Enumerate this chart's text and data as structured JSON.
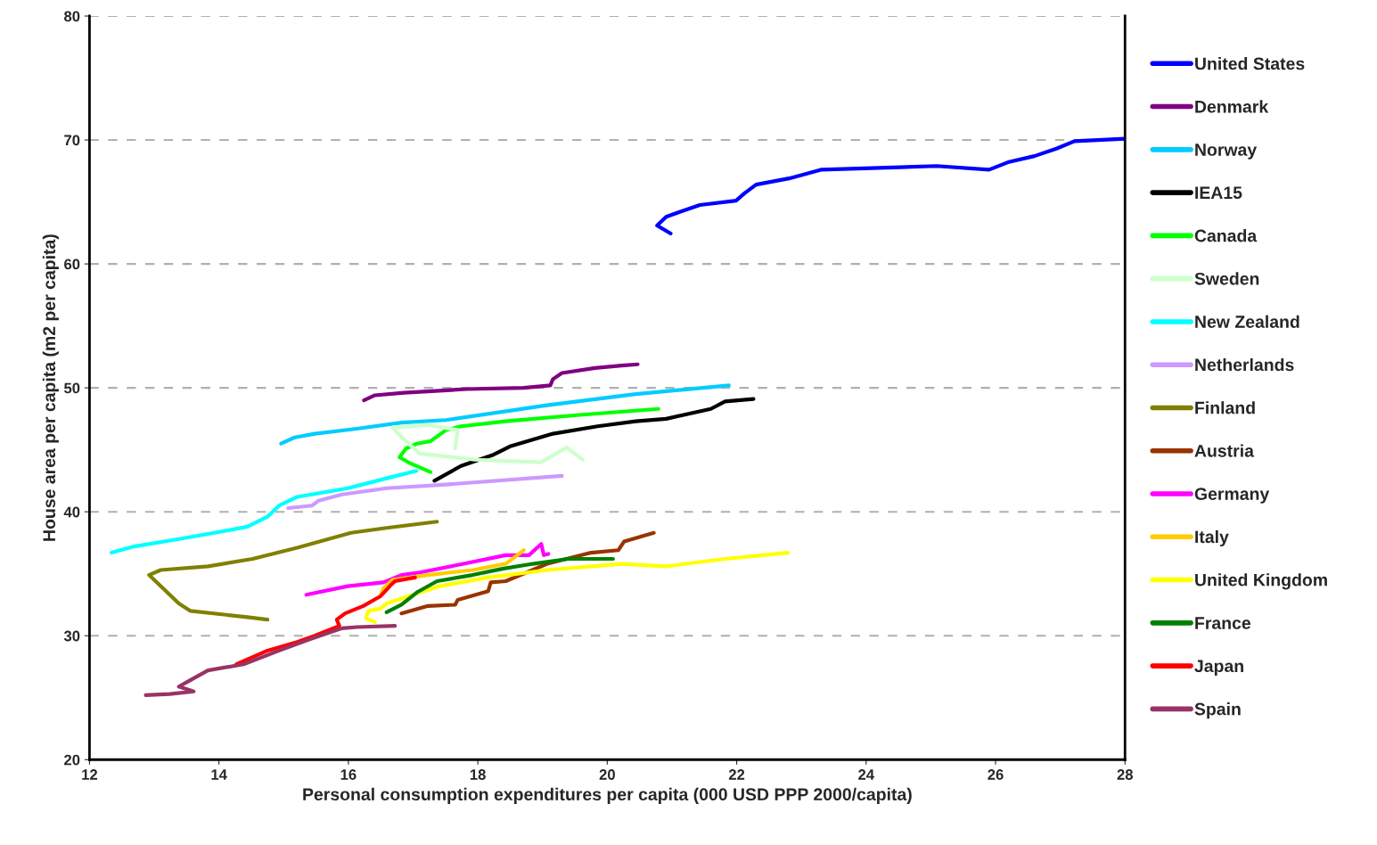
{
  "chart_data": {
    "type": "line",
    "xlabel": "Personal consumption expenditures per capita (000 USD PPP 2000/capita)",
    "ylabel": "House area per capita (m2 per capita)",
    "xlim": [
      12,
      28
    ],
    "xticks": [
      12,
      14,
      16,
      18,
      20,
      22,
      24,
      26,
      28
    ],
    "ylim": [
      20,
      80
    ],
    "yticks": [
      20,
      30,
      40,
      50,
      60,
      70,
      80
    ],
    "grid": "y",
    "legend": "right",
    "marker": "none",
    "line_style": "solid",
    "series": [
      {
        "name": "United States",
        "color": "#0000ff",
        "x": [
          20.98,
          20.77,
          20.91,
          21.12,
          21.43,
          21.99,
          22.12,
          22.3,
          22.81,
          23.3,
          25.09,
          25.9,
          26.19,
          26.6,
          26.94,
          27.22,
          28.0
        ],
        "values": [
          62.45,
          63.1,
          63.8,
          64.2,
          64.75,
          65.1,
          65.7,
          66.4,
          66.9,
          67.6,
          67.9,
          67.6,
          68.2,
          68.7,
          69.3,
          69.9,
          70.1
        ]
      },
      {
        "name": "Denmark",
        "color": "#800080",
        "x": [
          16.24,
          16.41,
          16.86,
          17.83,
          18.71,
          19.12,
          19.16,
          19.3,
          19.81,
          20.22,
          20.47
        ],
        "values": [
          49.0,
          49.4,
          49.6,
          49.9,
          50.0,
          50.2,
          50.7,
          51.2,
          51.6,
          51.8,
          51.9
        ]
      },
      {
        "name": "Norway",
        "color": "#00ccff",
        "x": [
          14.96,
          15.17,
          15.48,
          16.13,
          16.82,
          17.51,
          19.07,
          20.44,
          21.88
        ],
        "values": [
          45.5,
          46.0,
          46.3,
          46.7,
          47.2,
          47.4,
          48.6,
          49.5,
          50.2
        ]
      },
      {
        "name": "IEA15",
        "color": "#000000",
        "x": [
          17.33,
          17.74,
          18.24,
          18.51,
          19.16,
          19.85,
          20.44,
          20.91,
          21.6,
          21.82,
          22.26
        ],
        "values": [
          42.5,
          43.7,
          44.6,
          45.3,
          46.3,
          46.9,
          47.3,
          47.5,
          48.3,
          48.9,
          49.1
        ]
      },
      {
        "name": "Canada",
        "color": "#00ff00",
        "x": [
          17.27,
          16.96,
          16.79,
          16.89,
          17.06,
          17.27,
          17.51,
          17.74,
          18.43,
          19.53,
          20.79
        ],
        "values": [
          43.2,
          43.9,
          44.4,
          45.1,
          45.5,
          45.7,
          46.6,
          46.9,
          47.3,
          47.8,
          48.3
        ]
      },
      {
        "name": "Sweden",
        "color": "#ccffcc",
        "x": [
          19.62,
          19.37,
          18.98,
          17.96,
          17.1,
          16.89,
          16.68,
          17.23,
          17.69,
          17.65
        ],
        "values": [
          44.2,
          45.2,
          44.0,
          44.2,
          44.7,
          45.7,
          46.8,
          47.0,
          46.6,
          45.1
        ]
      },
      {
        "name": "New Zealand",
        "color": "#00ffff",
        "x": [
          12.34,
          12.69,
          13.38,
          13.93,
          14.44,
          14.75,
          14.93,
          15.21,
          15.99,
          16.59,
          17.05
        ],
        "values": [
          36.7,
          37.2,
          37.8,
          38.3,
          38.8,
          39.6,
          40.5,
          41.2,
          41.9,
          42.7,
          43.3
        ]
      },
      {
        "name": "Netherlands",
        "color": "#cc99ff",
        "x": [
          15.07,
          15.44,
          15.54,
          15.9,
          16.59,
          17.51,
          19.3
        ],
        "values": [
          40.3,
          40.5,
          40.9,
          41.4,
          41.9,
          42.2,
          42.9
        ]
      },
      {
        "name": "Finland",
        "color": "#808000",
        "x": [
          14.75,
          14.44,
          13.56,
          13.38,
          12.92,
          13.1,
          13.83,
          14.52,
          15.21,
          16.04,
          16.59,
          17.37
        ],
        "values": [
          31.3,
          31.5,
          32.0,
          32.6,
          34.9,
          35.3,
          35.6,
          36.2,
          37.1,
          38.3,
          38.7,
          39.2
        ]
      },
      {
        "name": "Austria",
        "color": "#993300",
        "x": [
          16.82,
          17.23,
          17.65,
          17.69,
          18.16,
          18.2,
          18.43,
          19.07,
          19.75,
          20.17,
          20.26,
          20.72
        ],
        "values": [
          31.8,
          32.4,
          32.5,
          32.9,
          33.6,
          34.3,
          34.4,
          35.8,
          36.7,
          36.9,
          37.6,
          38.3
        ]
      },
      {
        "name": "Germany",
        "color": "#ff00ff",
        "x": [
          15.35,
          15.99,
          16.54,
          16.82,
          17.1,
          17.78,
          18.43,
          18.79,
          18.98,
          19.02,
          19.09
        ],
        "values": [
          33.3,
          34.0,
          34.3,
          34.9,
          35.1,
          35.8,
          36.5,
          36.5,
          37.4,
          36.5,
          36.6
        ]
      },
      {
        "name": "Italy",
        "color": "#ffcc00",
        "x": [
          16.5,
          16.54,
          16.68,
          17.23,
          17.92,
          18.43,
          18.61,
          18.71
        ],
        "values": [
          33.3,
          33.8,
          34.5,
          34.9,
          35.3,
          35.8,
          36.5,
          36.9
        ]
      },
      {
        "name": "United Kingdom",
        "color": "#ffff00",
        "x": [
          16.41,
          16.27,
          16.31,
          16.5,
          16.59,
          17.0,
          17.41,
          18.16,
          19.07,
          20.22,
          20.91,
          21.82,
          22.79
        ],
        "values": [
          31.1,
          31.4,
          32.0,
          32.2,
          32.6,
          33.3,
          34.0,
          34.7,
          35.3,
          35.8,
          35.6,
          36.2,
          36.7
        ]
      },
      {
        "name": "France",
        "color": "#008000",
        "x": [
          16.59,
          16.82,
          17.06,
          17.37,
          17.92,
          18.38,
          18.85,
          19.4,
          20.09
        ],
        "values": [
          31.9,
          32.5,
          33.5,
          34.4,
          34.9,
          35.4,
          35.8,
          36.2,
          36.2
        ]
      },
      {
        "name": "Japan",
        "color": "#ff0000",
        "x": [
          14.27,
          14.75,
          15.21,
          15.48,
          15.86,
          15.82,
          15.95,
          16.23,
          16.5,
          16.64,
          16.72,
          17.03
        ],
        "values": [
          27.7,
          28.8,
          29.5,
          30.0,
          30.8,
          31.3,
          31.8,
          32.4,
          33.2,
          34.0,
          34.4,
          34.7
        ]
      },
      {
        "name": "Spain",
        "color": "#993366",
        "x": [
          12.87,
          13.24,
          13.61,
          13.38,
          13.52,
          13.83,
          14.38,
          14.93,
          15.4,
          15.9,
          16.13,
          16.72
        ],
        "values": [
          25.2,
          25.3,
          25.5,
          25.9,
          26.3,
          27.2,
          27.7,
          28.8,
          29.7,
          30.6,
          30.7,
          30.8
        ]
      }
    ]
  }
}
